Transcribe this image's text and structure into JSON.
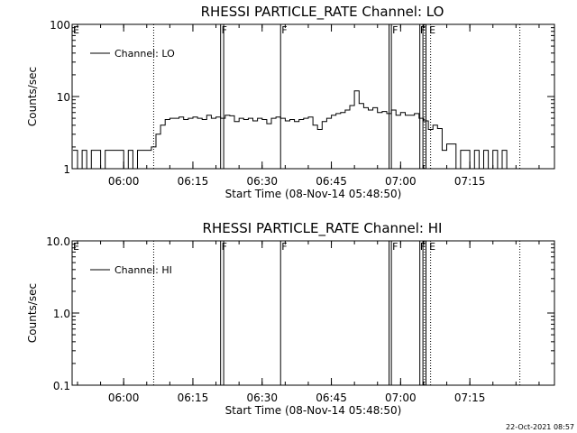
{
  "footer": {
    "timestamp": "22-Oct-2021 08:57"
  },
  "chart_data": [
    {
      "type": "line",
      "title": "RHESSI PARTICLE_RATE Channel: LO",
      "xlabel": "Start Time (08-Nov-14 05:48:50)",
      "ylabel": "Counts/sec",
      "yscale": "log",
      "ylim": [
        1,
        100
      ],
      "yticks": [
        "1",
        "10",
        "100"
      ],
      "xlim": [
        "05:48:50",
        "07:33:20"
      ],
      "xticks": [
        "06:00",
        "06:15",
        "06:30",
        "06:45",
        "07:00",
        "07:15"
      ],
      "grid": false,
      "legend_position": "top-left",
      "series": [
        {
          "name": "Channel: LO",
          "x": [
            "05:49",
            "05:50",
            "05:51",
            "05:52",
            "05:53",
            "05:54",
            "05:55",
            "05:56",
            "05:57",
            "05:58",
            "05:59",
            "06:00",
            "06:01",
            "06:02",
            "06:03",
            "06:04",
            "06:05",
            "06:06",
            "06:07",
            "06:08",
            "06:09",
            "06:10",
            "06:11",
            "06:12",
            "06:13",
            "06:14",
            "06:15",
            "06:16",
            "06:17",
            "06:18",
            "06:19",
            "06:20",
            "06:21",
            "06:22",
            "06:23",
            "06:24",
            "06:25",
            "06:26",
            "06:27",
            "06:28",
            "06:29",
            "06:30",
            "06:31",
            "06:32",
            "06:33",
            "06:34",
            "06:35",
            "06:36",
            "06:37",
            "06:38",
            "06:39",
            "06:40",
            "06:41",
            "06:42",
            "06:43",
            "06:44",
            "06:45",
            "06:46",
            "06:47",
            "06:48",
            "06:49",
            "06:50",
            "06:51",
            "06:52",
            "06:53",
            "06:54",
            "06:55",
            "06:56",
            "06:57",
            "06:58",
            "06:59",
            "07:00",
            "07:01",
            "07:02",
            "07:03",
            "07:04",
            "07:05",
            "07:06",
            "07:07",
            "07:08",
            "07:09",
            "07:10",
            "07:11",
            "07:12",
            "07:13",
            "07:14",
            "07:15",
            "07:16",
            "07:17",
            "07:18",
            "07:19",
            "07:20",
            "07:21",
            "07:22",
            "07:23"
          ],
          "y": [
            1.8,
            1,
            1.8,
            1,
            1.8,
            1.8,
            1,
            1.8,
            1.8,
            1.8,
            1.8,
            1,
            1.8,
            1,
            1.8,
            1.8,
            1.8,
            2,
            3,
            4,
            4.8,
            5,
            5,
            5.2,
            4.8,
            5,
            5.2,
            5,
            4.8,
            5.5,
            5,
            5.2,
            5,
            5.5,
            5.4,
            4.5,
            5,
            4.8,
            5,
            4.6,
            5,
            4.8,
            4.2,
            5,
            5.2,
            5,
            4.6,
            4.8,
            4.5,
            4.8,
            5,
            5.2,
            4,
            3.5,
            4.5,
            5,
            5.5,
            5.8,
            6,
            6.5,
            7.5,
            12,
            8,
            7,
            6.5,
            7,
            6,
            6.2,
            5.8,
            6.5,
            5.5,
            6,
            5.5,
            5.5,
            5.8,
            5,
            4.6,
            3.5,
            4,
            3.6,
            1.8,
            2.2,
            2.2,
            1,
            1.8,
            1.8,
            1,
            1.8,
            1,
            1.8,
            1,
            1.8,
            1,
            1.8,
            1
          ]
        }
      ],
      "annotations": [
        {
          "label": "E",
          "at": "05:48:50"
        },
        {
          "label": "F",
          "at": "06:21"
        },
        {
          "label": "F",
          "at": "06:34"
        },
        {
          "label": "F",
          "at": "06:58"
        },
        {
          "label": "F",
          "at": "07:04"
        },
        {
          "label": "E",
          "at": "07:06"
        }
      ]
    },
    {
      "type": "line",
      "title": "RHESSI PARTICLE_RATE Channel: HI",
      "xlabel": "Start Time (08-Nov-14 05:48:50)",
      "ylabel": "Counts/sec",
      "yscale": "log",
      "ylim": [
        0.1,
        10
      ],
      "yticks": [
        "0.1",
        "1.0",
        "10.0"
      ],
      "xlim": [
        "05:48:50",
        "07:33:20"
      ],
      "xticks": [
        "06:00",
        "06:15",
        "06:30",
        "06:45",
        "07:00",
        "07:15"
      ],
      "grid": false,
      "legend_position": "top-left",
      "series": [
        {
          "name": "Channel: HI",
          "x": [],
          "y": []
        }
      ],
      "annotations": [
        {
          "label": "E",
          "at": "05:48:50"
        },
        {
          "label": "F",
          "at": "06:21"
        },
        {
          "label": "F",
          "at": "06:34"
        },
        {
          "label": "F",
          "at": "06:58"
        },
        {
          "label": "F",
          "at": "07:04"
        },
        {
          "label": "E",
          "at": "07:06"
        }
      ]
    }
  ]
}
